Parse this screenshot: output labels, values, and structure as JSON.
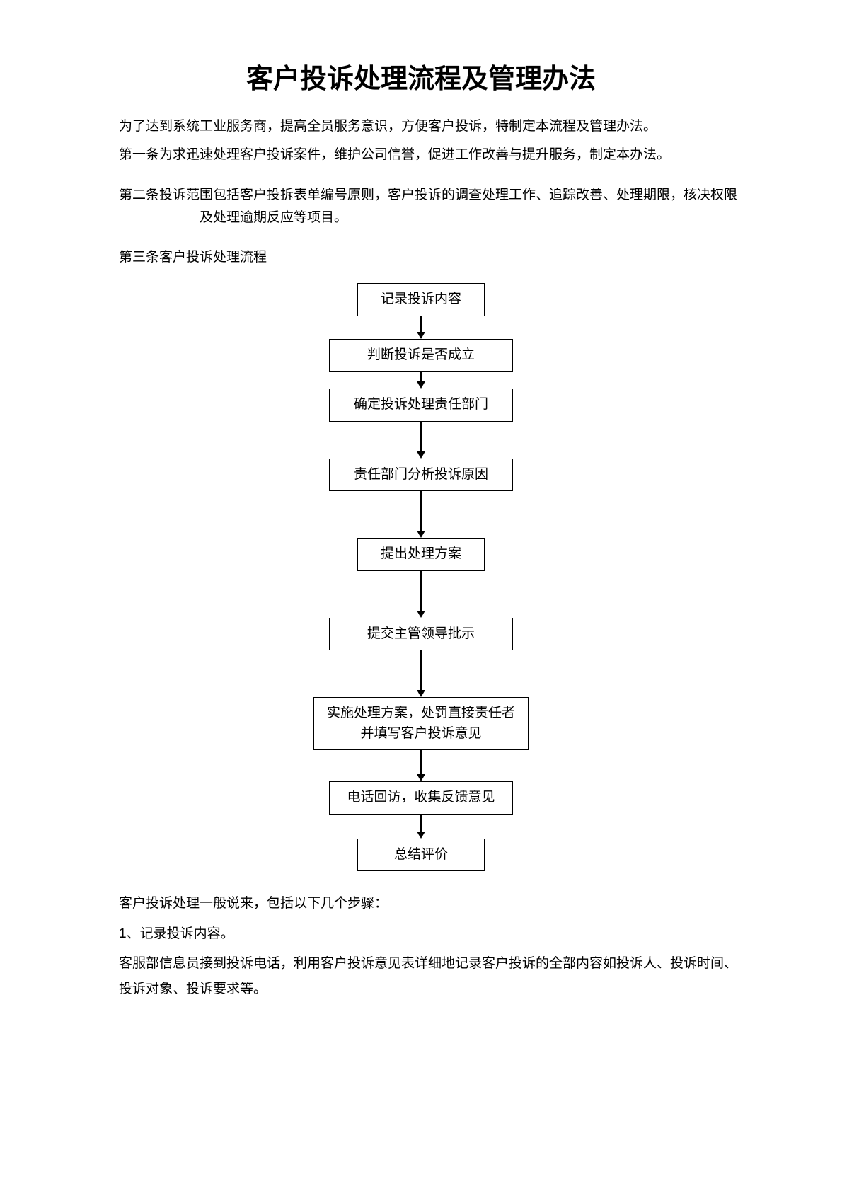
{
  "title": "客户投诉处理流程及管理办法",
  "intro": "为了达到系统工业服务商，提高全员服务意识，方便客户投诉，特制定本流程及管理办法。",
  "articles": {
    "a1": "第一条为求迅速处理客户投诉案件，维护公司信誉，促进工作改善与提升服务，制定本办法。",
    "a2": "第二条投诉范围包括客户投拆表单编号原则，客户投诉的调查处理工作、追踪改善、处理期限，核决权限及处理逾期反应等项目。",
    "a3": "第三条客户投诉处理流程"
  },
  "flow": {
    "nodes": [
      {
        "label": "记录投诉内容",
        "cls": "",
        "gap": 22
      },
      {
        "label": "判断投诉是否成立",
        "cls": "wide",
        "gap": 14
      },
      {
        "label": "确定投诉处理责任部门",
        "cls": "wide",
        "gap": 42
      },
      {
        "label": "责任部门分析投诉原因",
        "cls": "wide",
        "gap": 56
      },
      {
        "label": "提出处理方案",
        "cls": "",
        "gap": 56
      },
      {
        "label": "提交主管领导批示",
        "cls": "wide",
        "gap": 56
      },
      {
        "label": "实施处理方案，处罚直接责任者\n并填写客户投诉意见",
        "cls": "wider",
        "gap": 34
      },
      {
        "label": "电话回访，收集反馈意见",
        "cls": "wide",
        "gap": 24
      },
      {
        "label": "总结评价",
        "cls": "",
        "gap": 0
      }
    ],
    "box_border_color": "#000000",
    "arrow_color": "#000000",
    "font_size": 19
  },
  "postflow": {
    "p1": "客户投诉处理一般说来，包括以下几个步骤：",
    "p2_num": "1",
    "p2_text": "、记录投诉内容。",
    "p3": "客服部信息员接到投诉电话，利用客户投诉意见表详细地记录客户投诉的全部内容如投诉人、投诉时间、投诉对象、投诉要求等。"
  }
}
